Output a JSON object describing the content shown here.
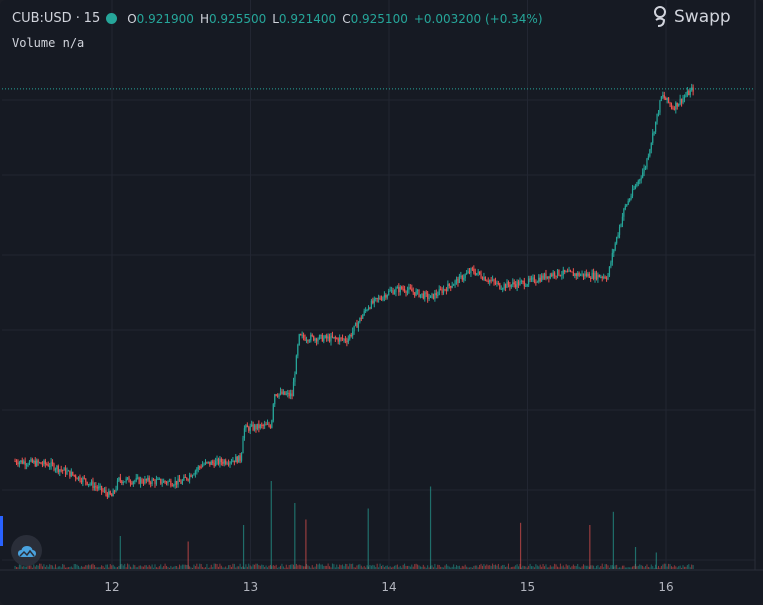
{
  "legend": {
    "symbol": "CUB:USD",
    "interval": "15",
    "open_key": "O",
    "open": "0.921900",
    "high_key": "H",
    "high": "0.925500",
    "low_key": "L",
    "low": "0.921400",
    "close_key": "C",
    "close": "0.925100",
    "change": "+0.003200 (+0.34%)"
  },
  "volume_legend": {
    "label": "Volume",
    "value": "n/a"
  },
  "brand": {
    "name": "Swapp",
    "icon": "swapp-logo-icon"
  },
  "colors": {
    "up": "#26a69a",
    "down": "#ef5350",
    "background": "#161a23",
    "grid": "#222632",
    "text": "#b2b5be"
  },
  "chart_data": {
    "type": "candlestick",
    "x_ticks": [
      "12",
      "13",
      "14",
      "15",
      "16"
    ],
    "y_scale": "price, no axis labels shown",
    "last_close": 0.9251,
    "grid": true,
    "volume_pane": true,
    "price_path": [
      {
        "day": 11.3,
        "price": 0.8938
      },
      {
        "day": 11.55,
        "price": 0.8935
      },
      {
        "day": 11.8,
        "price": 0.8922
      },
      {
        "day": 12.0,
        "price": 0.8908
      },
      {
        "day": 12.05,
        "price": 0.8922
      },
      {
        "day": 12.5,
        "price": 0.892
      },
      {
        "day": 12.65,
        "price": 0.8935
      },
      {
        "day": 12.93,
        "price": 0.894
      },
      {
        "day": 12.95,
        "price": 0.8965
      },
      {
        "day": 13.15,
        "price": 0.8968
      },
      {
        "day": 13.17,
        "price": 0.8995
      },
      {
        "day": 13.3,
        "price": 0.8993
      },
      {
        "day": 13.35,
        "price": 0.9042
      },
      {
        "day": 13.7,
        "price": 0.904
      },
      {
        "day": 13.85,
        "price": 0.9068
      },
      {
        "day": 14.0,
        "price": 0.908
      },
      {
        "day": 14.1,
        "price": 0.9083
      },
      {
        "day": 14.3,
        "price": 0.9075
      },
      {
        "day": 14.5,
        "price": 0.909
      },
      {
        "day": 14.6,
        "price": 0.9098
      },
      {
        "day": 14.8,
        "price": 0.9085
      },
      {
        "day": 15.0,
        "price": 0.9088
      },
      {
        "day": 15.2,
        "price": 0.9096
      },
      {
        "day": 15.58,
        "price": 0.9093
      },
      {
        "day": 15.62,
        "price": 0.9115
      },
      {
        "day": 15.7,
        "price": 0.915
      },
      {
        "day": 15.85,
        "price": 0.9185
      },
      {
        "day": 15.92,
        "price": 0.922
      },
      {
        "day": 15.97,
        "price": 0.9245
      },
      {
        "day": 16.05,
        "price": 0.9235
      },
      {
        "day": 16.2,
        "price": 0.9251
      }
    ],
    "volume_spikes": [
      {
        "day": 12.06,
        "value": 30,
        "dir": "up"
      },
      {
        "day": 12.55,
        "value": 25,
        "dir": "down"
      },
      {
        "day": 12.95,
        "value": 40,
        "dir": "up"
      },
      {
        "day": 13.15,
        "value": 80,
        "dir": "up"
      },
      {
        "day": 13.32,
        "value": 60,
        "dir": "up"
      },
      {
        "day": 13.4,
        "value": 45,
        "dir": "down"
      },
      {
        "day": 13.85,
        "value": 55,
        "dir": "up"
      },
      {
        "day": 14.3,
        "value": 75,
        "dir": "up"
      },
      {
        "day": 14.95,
        "value": 42,
        "dir": "down"
      },
      {
        "day": 15.45,
        "value": 40,
        "dir": "down"
      },
      {
        "day": 15.62,
        "value": 52,
        "dir": "up"
      },
      {
        "day": 15.78,
        "value": 20,
        "dir": "up"
      },
      {
        "day": 15.93,
        "value": 15,
        "dir": "up"
      }
    ]
  }
}
